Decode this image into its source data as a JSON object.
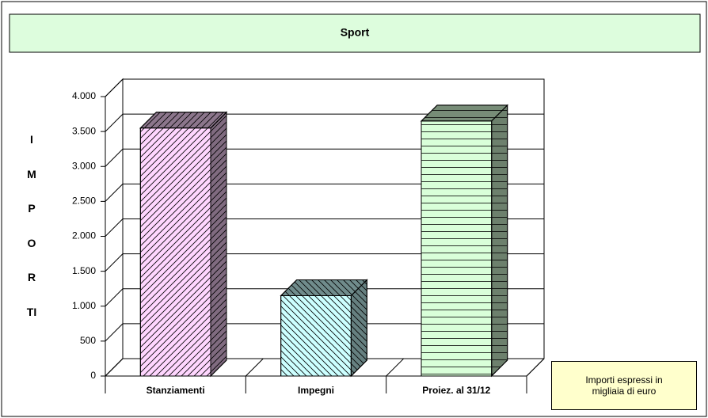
{
  "chart_data": {
    "type": "bar3d",
    "title": "Sport",
    "y_label": "IMPORTI",
    "categories": [
      "Stanziamenti",
      "Impegni",
      "Proiez. al 31/12"
    ],
    "values": [
      3550,
      1150,
      3650
    ],
    "colors": [
      "#ffd6ff",
      "#ccffff",
      "#d9ffd9"
    ],
    "ylim": [
      0,
      4000
    ],
    "yticks": [
      0,
      500,
      {
        "value": 1000,
        "label": "1.000"
      },
      {
        "value": 1500,
        "label": "1.500"
      },
      {
        "value": 2000,
        "label": "2.000"
      },
      {
        "value": 2500,
        "label": "2.500"
      },
      {
        "value": 3000,
        "label": "3.000"
      },
      {
        "value": 3500,
        "label": "3.500"
      },
      {
        "value": 4000,
        "label": "4.000"
      }
    ],
    "grid": true,
    "note": "Importi espressi in\nmigliaia di euro"
  }
}
